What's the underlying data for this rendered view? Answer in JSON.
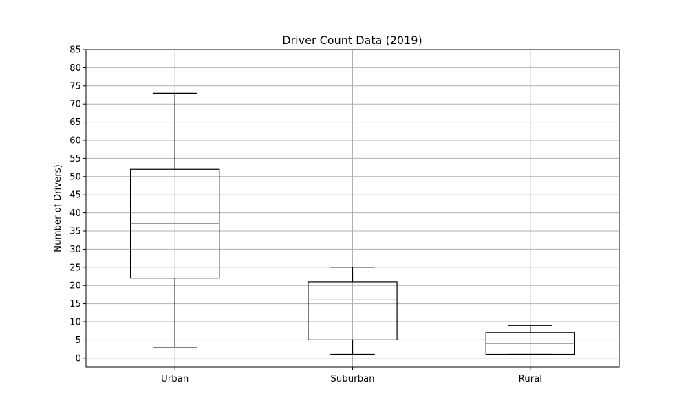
{
  "chart_data": {
    "type": "box",
    "title": "Driver Count Data (2019)",
    "xlabel": "",
    "ylabel": "Number of Drivers)",
    "ylim": [
      -2.5,
      85
    ],
    "yticks": [
      0,
      5,
      10,
      15,
      20,
      25,
      30,
      35,
      40,
      45,
      50,
      55,
      60,
      65,
      70,
      75,
      80,
      85
    ],
    "grid": true,
    "categories": [
      "Urban",
      "Suburban",
      "Rural"
    ],
    "boxes": [
      {
        "category": "Urban",
        "whisker_low": 3,
        "q1": 22,
        "median": 37,
        "q3": 52,
        "whisker_high": 73
      },
      {
        "category": "Suburban",
        "whisker_low": 1,
        "q1": 5,
        "median": 16,
        "q3": 21,
        "whisker_high": 25
      },
      {
        "category": "Rural",
        "whisker_low": 1,
        "q1": 1,
        "median": 4,
        "q3": 7,
        "whisker_high": 9
      }
    ],
    "colors": {
      "box": "#000000",
      "median": "#ff7f0e",
      "grid": "#b0b0b0"
    }
  }
}
